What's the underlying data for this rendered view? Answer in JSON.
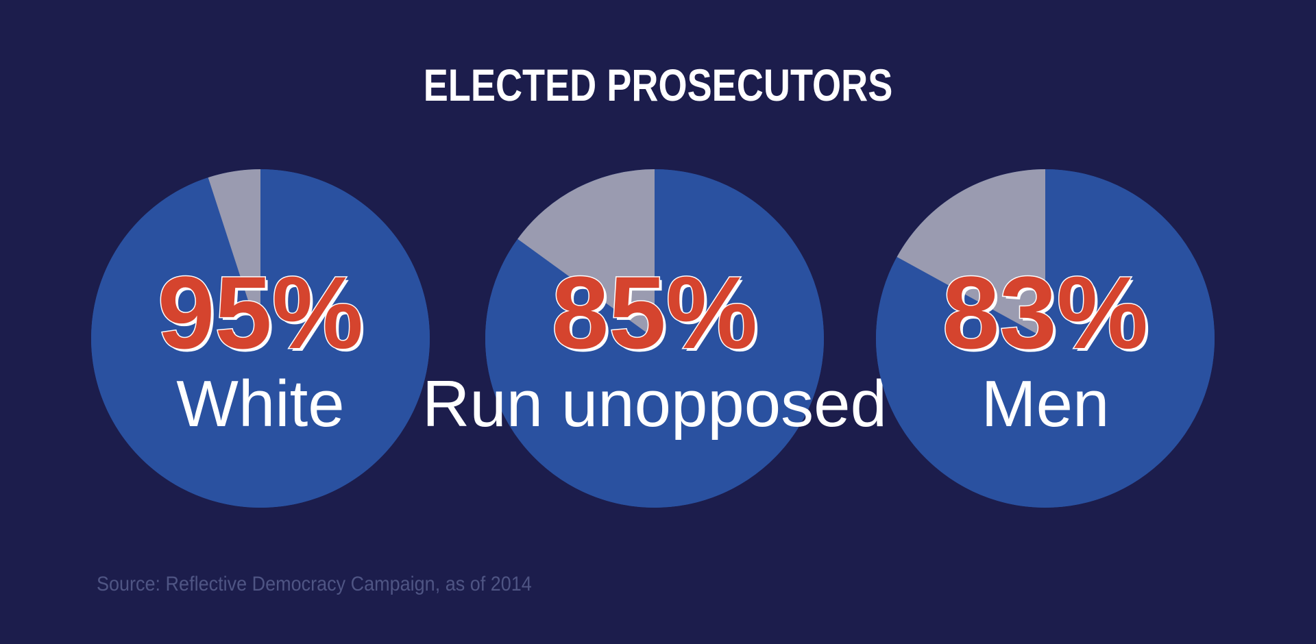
{
  "chart_data": {
    "type": "pie",
    "title": "ELECTED PROSECUTORS",
    "charts": [
      {
        "label": "White",
        "value": 95,
        "display": "95%"
      },
      {
        "label": "Run unopposed",
        "value": 85,
        "display": "85%"
      },
      {
        "label": "Men",
        "value": 83,
        "display": "83%"
      }
    ],
    "colors": {
      "background": "#1c1d4c",
      "highlight_slice": "#2a51a0",
      "remainder_slice": "#9a9bb0",
      "percentage_text": "#d5442e",
      "label_text": "#ffffff"
    },
    "source": "Source: Reflective Democracy Campaign, as of 2014"
  }
}
